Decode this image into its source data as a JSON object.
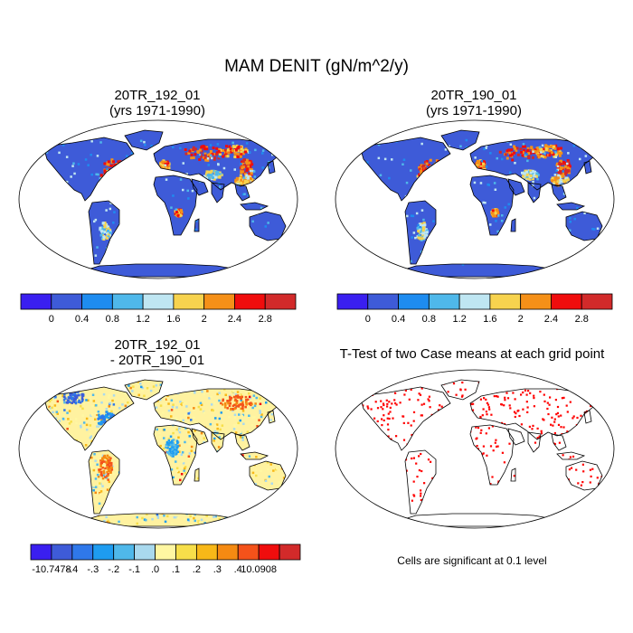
{
  "figure": {
    "main_title": "MAM DENIT (gN/m^2/y)"
  },
  "panels": {
    "top_left": {
      "title_line1": "20TR_192_01",
      "title_line2": "(yrs 1971-1990)"
    },
    "top_right": {
      "title_line1": "20TR_190_01",
      "title_line2": "(yrs 1971-1990)"
    },
    "bottom_left": {
      "title_line1": "20TR_192_01",
      "title_line2": "- 20TR_190_01"
    },
    "bottom_right": {
      "title": "T-Test of two Case means at each grid point",
      "note": "Cells are significant at 0.1 level"
    }
  },
  "colorbars": {
    "top": {
      "colors": [
        "#3a1ff0",
        "#3e5bd8",
        "#1e8cf0",
        "#4fb8ea",
        "#bfe6f2",
        "#f7d34e",
        "#f59018",
        "#f00d0d",
        "#d22a2a"
      ],
      "labels": [
        "0",
        "0.4",
        "0.8",
        "1.2",
        "1.6",
        "2",
        "2.4",
        "2.8"
      ]
    },
    "diff": {
      "colors": [
        "#3a1ff0",
        "#3e5bd8",
        "#2f78ea",
        "#1e9cf0",
        "#4fb8ea",
        "#a9d9ee",
        "#fff7a2",
        "#f7df4a",
        "#f8b818",
        "#f58a12",
        "#f4521a",
        "#f00d0d",
        "#d22a2a"
      ],
      "labels": [
        "-10.7478",
        "-.4",
        "-.3",
        "-.2",
        "-.1",
        ".0",
        ".1",
        ".2",
        ".3",
        ".4",
        "10.0908"
      ]
    }
  },
  "map_colors": {
    "base_top": "#3e5bd8",
    "base_diff": "#fff2a0",
    "significant": "#ff0000",
    "ocean": "#ffffff",
    "outline": "#000000"
  }
}
